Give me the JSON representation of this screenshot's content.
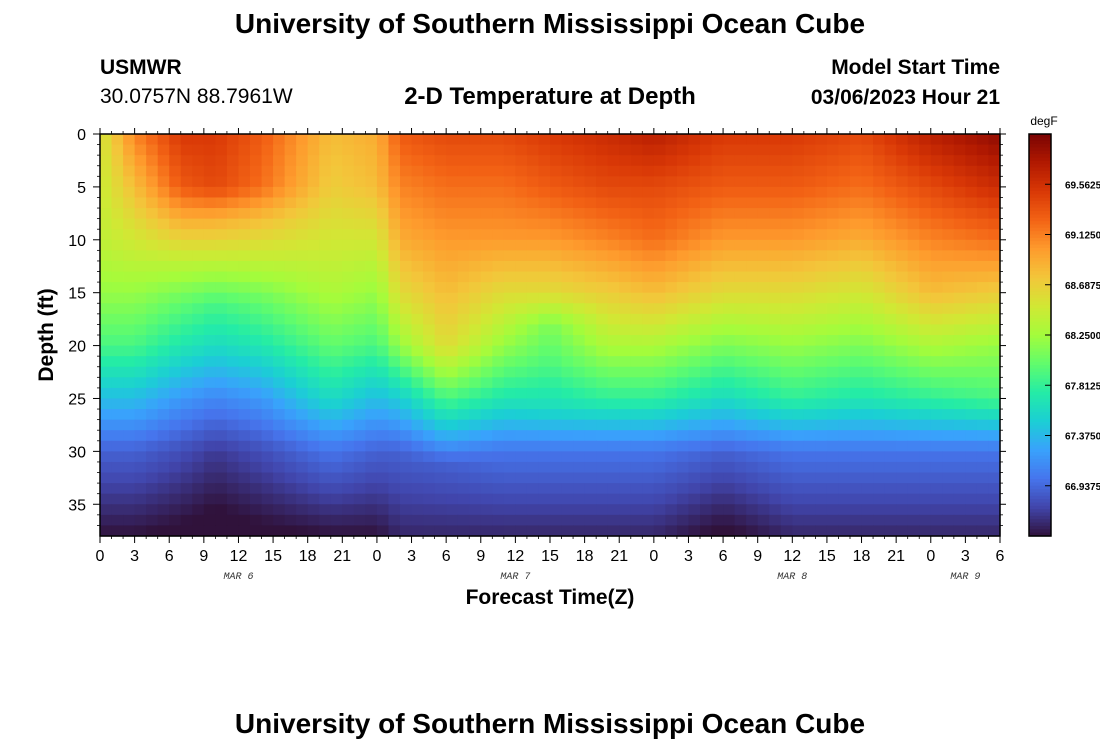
{
  "header": {
    "title": "University of Southern Mississippi Ocean Cube",
    "station_id": "USMWR",
    "coordinates": "30.0757N  88.7961W",
    "subtitle": "2-D Temperature at Depth",
    "model_start_label": "Model Start Time",
    "model_start_value": "03/06/2023 Hour 21"
  },
  "footer": {
    "title": "University of Southern Mississippi Ocean Cube"
  },
  "chart_data": {
    "type": "heatmap",
    "title": "2-D Temperature at Depth",
    "xlabel": "Forecast Time(Z)",
    "ylabel": "Depth (ft)",
    "x_tick_labels": [
      "0",
      "3",
      "6",
      "9",
      "12",
      "15",
      "18",
      "21",
      "0",
      "3",
      "6",
      "9",
      "12",
      "15",
      "18",
      "21",
      "0",
      "3",
      "6",
      "9",
      "12",
      "15",
      "18",
      "21",
      "0",
      "3",
      "6"
    ],
    "x_range_hours": [
      0,
      78
    ],
    "x_tick_step_hours": 3,
    "date_labels": [
      {
        "label": "MAR 6",
        "hour": 12
      },
      {
        "label": "MAR 7",
        "hour": 36
      },
      {
        "label": "MAR 8",
        "hour": 60
      },
      {
        "label": "MAR 9",
        "hour": 75
      }
    ],
    "y_tick_labels": [
      "0",
      "5",
      "10",
      "15",
      "20",
      "25",
      "30",
      "35"
    ],
    "y_ticks": [
      0,
      5,
      10,
      15,
      20,
      25,
      30,
      35
    ],
    "ylim": [
      0,
      38
    ],
    "y_inverted": true,
    "colorbar": {
      "unit": "degF",
      "tick_labels": [
        "69.5625",
        "69.1250",
        "68.6875",
        "68.2500",
        "67.8125",
        "67.3750",
        "66.9375"
      ],
      "tick_values": [
        69.5625,
        69.125,
        68.6875,
        68.25,
        67.8125,
        67.375,
        66.9375
      ],
      "range": [
        66.5,
        70.0
      ],
      "colors": [
        "#30123b",
        "#4145ab",
        "#4675ed",
        "#39a2fc",
        "#1bcfd4",
        "#24eca6",
        "#61fc6c",
        "#a4fc3b",
        "#d1e834",
        "#f3c63a",
        "#fe9b2d",
        "#f36315",
        "#d93806",
        "#b11901",
        "#7a0403"
      ]
    },
    "depth_profiles": [
      {
        "hour": 0,
        "depths": [
          0,
          10,
          15,
          20,
          25,
          30,
          38
        ],
        "temps": [
          68.5,
          68.4,
          68.2,
          67.9,
          67.4,
          66.9,
          66.5
        ]
      },
      {
        "hour": 3,
        "depths": [
          0,
          5,
          10,
          15,
          20,
          25,
          30,
          38
        ],
        "temps": [
          69.1,
          68.8,
          68.5,
          68.2,
          67.9,
          67.4,
          66.9,
          66.5
        ]
      },
      {
        "hour": 7,
        "depths": [
          0,
          5,
          8,
          12,
          16,
          20,
          25,
          30,
          38
        ],
        "temps": [
          69.5,
          69.3,
          68.9,
          68.4,
          68.0,
          67.7,
          67.2,
          66.8,
          66.45
        ]
      },
      {
        "hour": 10,
        "depths": [
          0,
          5,
          8,
          12,
          16,
          20,
          25,
          30,
          38
        ],
        "temps": [
          69.5,
          69.4,
          68.9,
          68.4,
          67.9,
          67.6,
          67.1,
          66.7,
          66.4
        ]
      },
      {
        "hour": 14,
        "depths": [
          0,
          5,
          8,
          12,
          16,
          20,
          25,
          30,
          38
        ],
        "temps": [
          69.3,
          69.2,
          68.8,
          68.4,
          68.0,
          67.7,
          67.2,
          66.8,
          66.45
        ]
      },
      {
        "hour": 20,
        "depths": [
          0,
          5,
          10,
          15,
          20,
          25,
          30,
          38
        ],
        "temps": [
          68.8,
          68.7,
          68.5,
          68.3,
          68.0,
          67.6,
          67.0,
          66.5
        ]
      },
      {
        "hour": 24,
        "depths": [
          0,
          5,
          10,
          15,
          20,
          25,
          30,
          38
        ],
        "temps": [
          68.9,
          68.8,
          68.5,
          68.2,
          67.9,
          67.4,
          66.9,
          66.5
        ]
      },
      {
        "hour": 26,
        "depths": [
          0,
          5,
          10,
          15,
          20,
          25,
          30,
          38
        ],
        "temps": [
          69.3,
          69.1,
          68.9,
          68.6,
          68.2,
          67.5,
          66.9,
          66.6
        ]
      },
      {
        "hour": 30,
        "depths": [
          0,
          5,
          10,
          15,
          20,
          23,
          27,
          31,
          38
        ],
        "temps": [
          69.4,
          69.2,
          69.0,
          68.8,
          68.6,
          68.2,
          67.6,
          66.9,
          66.6
        ]
      },
      {
        "hour": 35,
        "depths": [
          0,
          5,
          10,
          15,
          20,
          25,
          30,
          38
        ],
        "temps": [
          69.4,
          69.2,
          69.0,
          68.6,
          68.2,
          67.7,
          67.0,
          66.6
        ]
      },
      {
        "hour": 39,
        "depths": [
          0,
          5,
          10,
          15,
          18,
          22,
          26,
          30,
          38
        ],
        "temps": [
          69.5,
          69.3,
          69.0,
          68.6,
          68.1,
          67.9,
          67.6,
          67.0,
          66.6
        ]
      },
      {
        "hour": 44,
        "depths": [
          0,
          5,
          10,
          15,
          20,
          25,
          30,
          38
        ],
        "temps": [
          69.6,
          69.4,
          69.1,
          68.7,
          68.3,
          67.8,
          67.0,
          66.6
        ]
      },
      {
        "hour": 48,
        "depths": [
          0,
          5,
          10,
          15,
          20,
          25,
          30,
          38
        ],
        "temps": [
          69.7,
          69.4,
          69.2,
          68.8,
          68.3,
          67.8,
          67.0,
          66.6
        ]
      },
      {
        "hour": 54,
        "depths": [
          0,
          5,
          10,
          15,
          20,
          25,
          30,
          38
        ],
        "temps": [
          69.5,
          69.3,
          69.0,
          68.6,
          68.1,
          67.6,
          66.9,
          66.45
        ]
      },
      {
        "hour": 60,
        "depths": [
          0,
          5,
          10,
          15,
          20,
          25,
          30,
          38
        ],
        "temps": [
          69.5,
          69.3,
          69.0,
          68.6,
          68.2,
          67.8,
          67.0,
          66.6
        ]
      },
      {
        "hour": 66,
        "depths": [
          0,
          5,
          10,
          15,
          20,
          25,
          30,
          38
        ],
        "temps": [
          69.4,
          69.2,
          68.9,
          68.5,
          68.1,
          67.7,
          67.0,
          66.6
        ]
      },
      {
        "hour": 72,
        "depths": [
          0,
          5,
          10,
          15,
          20,
          25,
          30,
          38
        ],
        "temps": [
          69.7,
          69.4,
          69.1,
          68.8,
          68.3,
          67.8,
          67.0,
          66.6
        ]
      },
      {
        "hour": 78,
        "depths": [
          0,
          5,
          10,
          15,
          20,
          25,
          30,
          38
        ],
        "temps": [
          69.9,
          69.6,
          69.2,
          68.7,
          68.2,
          67.9,
          67.0,
          66.6
        ]
      }
    ]
  }
}
